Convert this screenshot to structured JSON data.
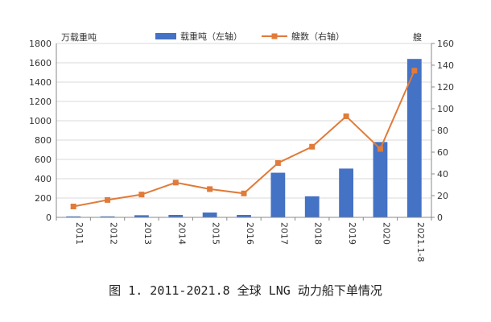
{
  "chart_data": {
    "type": "bar",
    "categories": [
      "2011",
      "2012",
      "2013",
      "2014",
      "2015",
      "2016",
      "2017",
      "2018",
      "2019",
      "2020",
      "2021.1-8"
    ],
    "series": [
      {
        "name": "载重吨（左轴）",
        "type": "bar",
        "axis": "left",
        "color": "#4472C4",
        "values": [
          10,
          10,
          22,
          25,
          50,
          25,
          462,
          218,
          505,
          780,
          1640
        ]
      },
      {
        "name": "艘数（右轴）",
        "type": "line",
        "axis": "right",
        "color": "#E07B39",
        "values": [
          10,
          16,
          21,
          32,
          26,
          22,
          50,
          65,
          93,
          63,
          135
        ]
      }
    ],
    "ylabel_left": "万载重吨",
    "ylabel_right": "艘",
    "ylim_left": [
      0,
      1800
    ],
    "yticks_left": [
      0,
      200,
      400,
      600,
      800,
      1000,
      1200,
      1400,
      1600,
      1800
    ],
    "ylim_right": [
      0,
      160
    ],
    "yticks_right": [
      0,
      20,
      40,
      60,
      80,
      100,
      120,
      140,
      160
    ],
    "grid": true,
    "legend_position": "top-center"
  },
  "caption": "图 1. 2011-2021.8 全球 LNG 动力船下单情况"
}
